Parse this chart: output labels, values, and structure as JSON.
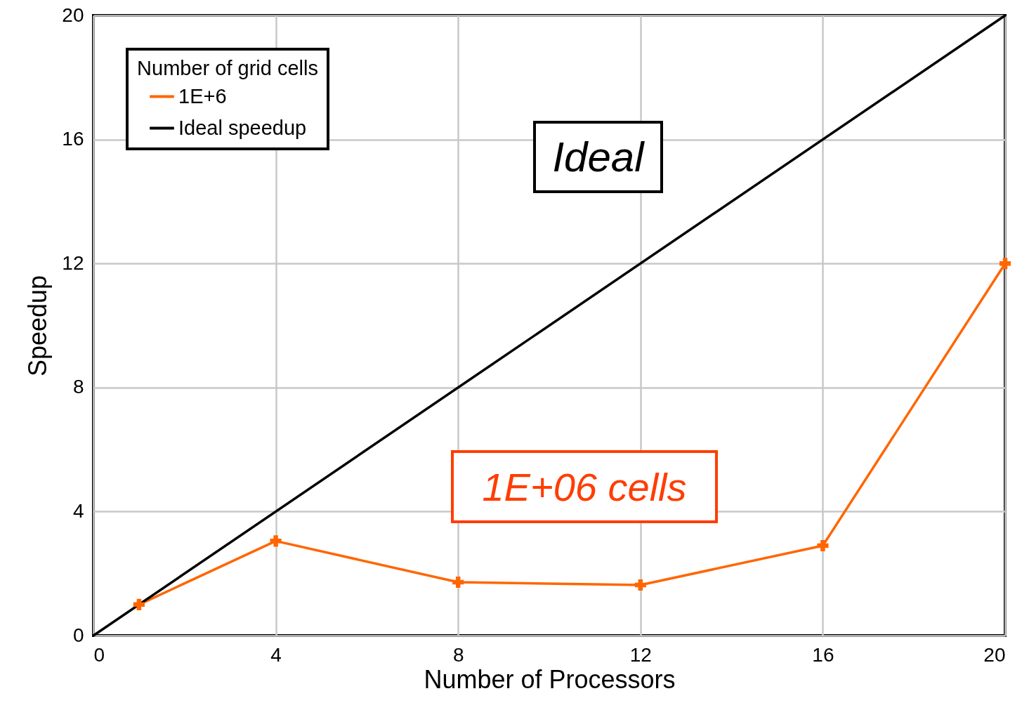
{
  "chart_data": {
    "type": "line",
    "xlabel": "Number of Processors",
    "ylabel": "Speedup",
    "legend_title": "Number of grid cells",
    "series": [
      {
        "name": "1E+6",
        "color": "#ff6600",
        "x": [
          1,
          4,
          8,
          12,
          16,
          20
        ],
        "values": [
          1,
          3.05,
          1.72,
          1.63,
          2.9,
          12
        ],
        "marker": "cross"
      },
      {
        "name": "Ideal speedup",
        "color": "#000000",
        "x": [
          0,
          20
        ],
        "values": [
          0,
          20
        ],
        "marker": "none"
      }
    ],
    "xlim": [
      0,
      20
    ],
    "xticks": [
      0,
      4,
      8,
      12,
      16,
      20
    ],
    "ylim": [
      0,
      20
    ],
    "yticks": [
      0,
      4,
      8,
      12,
      16,
      20
    ],
    "grid": true,
    "legend": "top left",
    "line_style": "solid",
    "annotations": [
      "Ideal",
      "1E+06 cells"
    ]
  }
}
